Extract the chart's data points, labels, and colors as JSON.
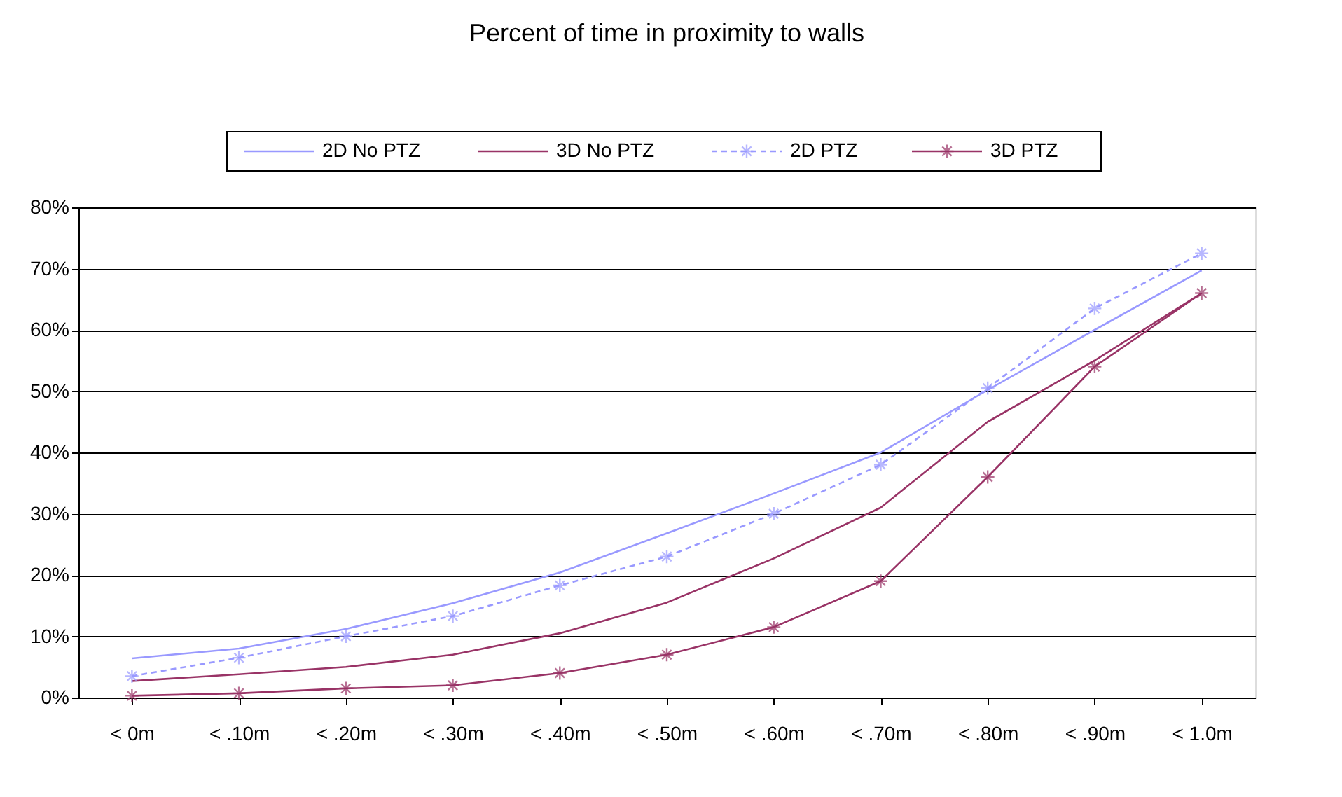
{
  "chart_data": {
    "type": "line",
    "title": "Percent of time in proximity to walls",
    "categories": [
      "< 0m",
      "< .10m",
      "< .20m",
      "< .30m",
      "< .40m",
      "< .50m",
      "< .60m",
      "< .70m",
      "< .80m",
      "< .90m",
      "< 1.0m"
    ],
    "series": [
      {
        "name": "2D No PTZ",
        "color": "#9999ff",
        "marker": "none",
        "line_style": "solid",
        "values": [
          6.4,
          8,
          11.2,
          15.4,
          20.4,
          26.8,
          33.3,
          40,
          50.2,
          60,
          69.7
        ]
      },
      {
        "name": "3D No PTZ",
        "color": "#993366",
        "marker": "none",
        "line_style": "solid",
        "values": [
          2.7,
          3.8,
          5,
          7,
          10.5,
          15.5,
          22.7,
          31,
          45,
          55,
          66
        ]
      },
      {
        "name": "2D PTZ",
        "color": "#9999ff",
        "marker": "cross",
        "line_style": "dashed",
        "values": [
          3.5,
          6.5,
          10,
          13.3,
          18.3,
          23,
          30,
          38,
          50.5,
          63.5,
          72.5
        ]
      },
      {
        "name": "3D PTZ",
        "color": "#993366",
        "marker": "cross",
        "line_style": "solid",
        "values": [
          0.3,
          0.7,
          1.5,
          2,
          4,
          7,
          11.5,
          19,
          36,
          54,
          66
        ]
      }
    ],
    "ylim": [
      0,
      80
    ],
    "yticks": [
      {
        "value": 0,
        "label": "0%"
      },
      {
        "value": 10,
        "label": "10%"
      },
      {
        "value": 20,
        "label": "20%"
      },
      {
        "value": 30,
        "label": "30%"
      },
      {
        "value": 40,
        "label": "40%"
      },
      {
        "value": 50,
        "label": "50%"
      },
      {
        "value": 60,
        "label": "60%"
      },
      {
        "value": 70,
        "label": "70%"
      },
      {
        "value": 80,
        "label": "80%"
      }
    ],
    "grid": "y",
    "legend": "top"
  }
}
